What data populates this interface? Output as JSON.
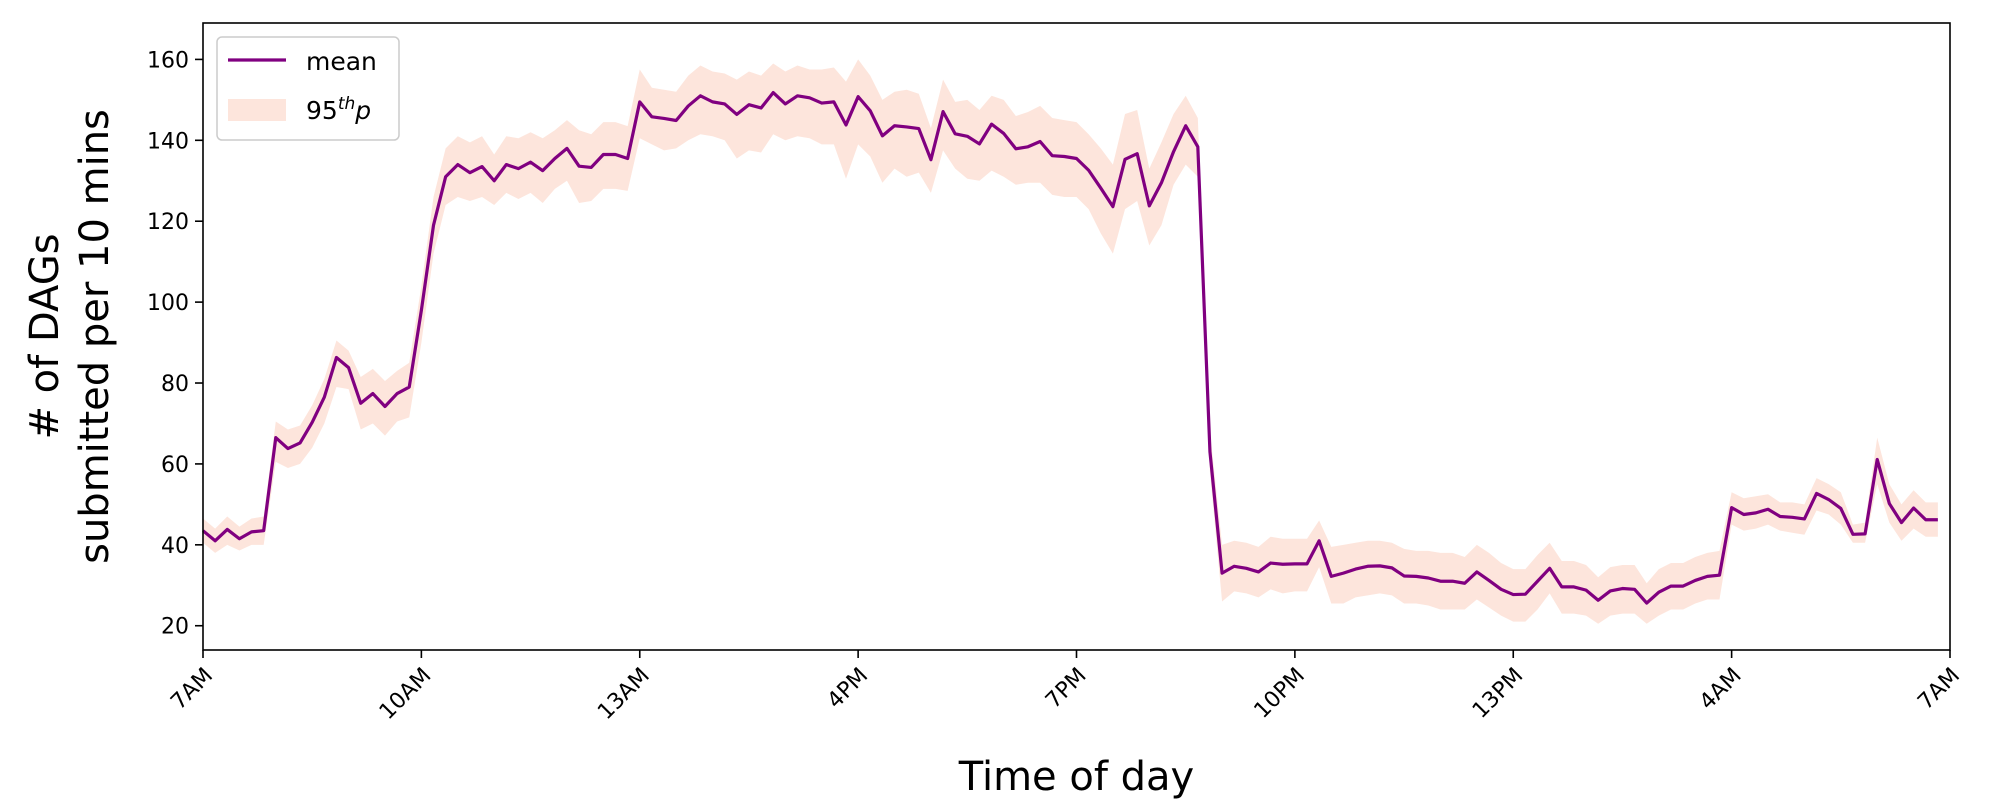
{
  "chart_data": {
    "type": "line",
    "xlabel": "Time of day",
    "ylabel": [
      "# of DAGs",
      "submitted per 10 mins"
    ],
    "xlim": [
      0,
      144
    ],
    "ylim": [
      14,
      169
    ],
    "x_ticks": [
      {
        "x": 0,
        "label": "7AM"
      },
      {
        "x": 18,
        "label": "10AM"
      },
      {
        "x": 36,
        "label": "13AM"
      },
      {
        "x": 54,
        "label": "4PM"
      },
      {
        "x": 72,
        "label": "7PM"
      },
      {
        "x": 90,
        "label": "10PM"
      },
      {
        "x": 108,
        "label": "13PM"
      },
      {
        "x": 126,
        "label": "4AM"
      },
      {
        "x": 144,
        "label": "7AM"
      }
    ],
    "y_ticks": [
      20,
      40,
      60,
      80,
      100,
      120,
      140,
      160
    ],
    "legend": {
      "position": "top-left",
      "mean_label": "mean",
      "band_label_base": "95",
      "band_label_sup": "th",
      "band_label_tail": "p"
    },
    "colors": {
      "mean": "#800080",
      "band": "#fde5dc"
    },
    "series": [
      {
        "name": "mean",
        "values": [
          43.5,
          41,
          43.8,
          41.5,
          43.2,
          43.5,
          66.5,
          63.8,
          65.2,
          70.3,
          76.5,
          86.3,
          83.8,
          75,
          77.4,
          74.2,
          77.4,
          79,
          98,
          119,
          131,
          134,
          132,
          133.5,
          130,
          134,
          133,
          134.6,
          132.5,
          135.5,
          138,
          133.6,
          133.3,
          136.5,
          136.5,
          135.5,
          149.5,
          145.8,
          145.4,
          144.9,
          148.5,
          151,
          149.5,
          149,
          146.4,
          148.8,
          148,
          151.8,
          149,
          151,
          150.5,
          149.2,
          149.5,
          143.8,
          150.8,
          147.3,
          141.1,
          143.6,
          143.3,
          142.9,
          135.2,
          147.1,
          141.6,
          141,
          139.1,
          144,
          141.7,
          137.9,
          138.4,
          139.7,
          136.2,
          136,
          135.5,
          132.6,
          128.2,
          123.6,
          135.3,
          136.7,
          123.8,
          129.5,
          137.2,
          143.6,
          138.4,
          63,
          33,
          34.7,
          34.2,
          33.3,
          35.5,
          35.2,
          35.3,
          35.3,
          41,
          32.2,
          33,
          34,
          34.7,
          34.8,
          34.3,
          32.3,
          32.2,
          31.8,
          31,
          31,
          30.5,
          33.3,
          31.2,
          29,
          27.7,
          27.8,
          31,
          34.2,
          29.6,
          29.6,
          28.8,
          26.3,
          28.6,
          29.2,
          29,
          25.6,
          28.3,
          29.8,
          29.8,
          31.2,
          32.2,
          32.5,
          49.2,
          47.5,
          47.9,
          48.8,
          47,
          46.8,
          46.4,
          52.7,
          51.2,
          49,
          42.6,
          42.7,
          61.1,
          50.2,
          45.5,
          49.1,
          46.2,
          46.2
        ]
      },
      {
        "name": "95thp",
        "lower": [
          40.5,
          38,
          40,
          38.6,
          40,
          40,
          60.5,
          59,
          60,
          64,
          70,
          79,
          78.5,
          68.5,
          70,
          67,
          70.5,
          71.5,
          90,
          112,
          124,
          126,
          125,
          126,
          124,
          127,
          125.5,
          127,
          124.5,
          128,
          130,
          124.5,
          125,
          128,
          128,
          127.5,
          140.5,
          139,
          137.5,
          138,
          140,
          141.5,
          141,
          140,
          135.5,
          137.5,
          137,
          141.5,
          140,
          141,
          140.5,
          139,
          139,
          130.5,
          139,
          136,
          129.5,
          133,
          131,
          132,
          127,
          137.5,
          133,
          130.5,
          130,
          132.5,
          131,
          129,
          129.5,
          129.5,
          126.5,
          126,
          126,
          123,
          117,
          112,
          123,
          125,
          114,
          119,
          129,
          134,
          131,
          58,
          26,
          28.5,
          28,
          27,
          29,
          28,
          28.5,
          28.5,
          34.5,
          25.5,
          25.5,
          27,
          27.5,
          28,
          27.5,
          25.5,
          25.5,
          25,
          24,
          24,
          24,
          26.5,
          24.5,
          22.5,
          21,
          21,
          24,
          28,
          23,
          23,
          22.5,
          20.5,
          22.5,
          23,
          23,
          20.5,
          22.5,
          24,
          24,
          25.5,
          26.5,
          26.5,
          45,
          43.5,
          44,
          45,
          43.5,
          43,
          42.5,
          48.5,
          47.5,
          45,
          40.5,
          40.5,
          55,
          45.5,
          41,
          44,
          42,
          42
        ],
        "upper": [
          46.5,
          44,
          47,
          44.5,
          46.5,
          47,
          70.5,
          68.5,
          69.5,
          74.5,
          81,
          90.5,
          88,
          81.5,
          83.5,
          80.5,
          83,
          85,
          104,
          126,
          138,
          141,
          139.5,
          141,
          136.5,
          141,
          140.5,
          142,
          140.5,
          142.5,
          145,
          142.5,
          141.5,
          144.5,
          144.5,
          143.5,
          157.5,
          153,
          152.5,
          152,
          156,
          158.5,
          157,
          156.5,
          155,
          157,
          156,
          159,
          157,
          158.5,
          157.5,
          157.5,
          158,
          154.5,
          160,
          156,
          150,
          152,
          152.5,
          151.5,
          143,
          155,
          149.5,
          150,
          147.5,
          151,
          150,
          146,
          147,
          148.5,
          145.5,
          145,
          144.5,
          141.5,
          138,
          134,
          146.5,
          147.5,
          133,
          139.5,
          146.5,
          151,
          145.5,
          68,
          40,
          41,
          40.5,
          39.5,
          42,
          41.5,
          41.5,
          41.5,
          46,
          39.5,
          40,
          40.5,
          41,
          41,
          40.5,
          39,
          38.5,
          38.5,
          38,
          38,
          37,
          40,
          38,
          35.5,
          34,
          34,
          37.5,
          40.5,
          36,
          36,
          35,
          32,
          34.5,
          35,
          35,
          30.5,
          34,
          35.5,
          35.5,
          37,
          38,
          38.5,
          53,
          51.5,
          52,
          52.5,
          50.5,
          50.5,
          50,
          56.5,
          55,
          53,
          45,
          45.5,
          66.5,
          55,
          50,
          53.5,
          50.5,
          50.5
        ]
      }
    ]
  }
}
